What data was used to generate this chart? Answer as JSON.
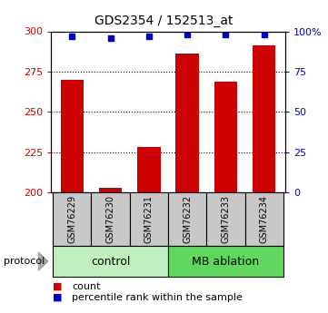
{
  "title": "GDS2354 / 152513_at",
  "samples": [
    "GSM76229",
    "GSM76230",
    "GSM76231",
    "GSM76232",
    "GSM76233",
    "GSM76234"
  ],
  "count_values": [
    270,
    203,
    228,
    286,
    269,
    291
  ],
  "percentile_values": [
    97,
    96,
    97,
    98,
    98,
    98
  ],
  "groups": [
    {
      "label": "control",
      "indices": [
        0,
        1,
        2
      ],
      "color": "#c0f0c0"
    },
    {
      "label": "MB ablation",
      "indices": [
        3,
        4,
        5
      ],
      "color": "#60d860"
    }
  ],
  "ylim_left": [
    200,
    300
  ],
  "ylim_right": [
    0,
    100
  ],
  "yticks_left": [
    200,
    225,
    250,
    275,
    300
  ],
  "yticks_right": [
    0,
    25,
    50,
    75,
    100
  ],
  "ytick_labels_right": [
    "0",
    "25",
    "50",
    "75",
    "100%"
  ],
  "bar_color": "#cc0000",
  "dot_color": "#0000cc",
  "bar_width": 0.6,
  "sample_box_color": "#c8c8c8",
  "legend_red_label": "count",
  "legend_blue_label": "percentile rank within the sample",
  "protocol_label": "protocol"
}
